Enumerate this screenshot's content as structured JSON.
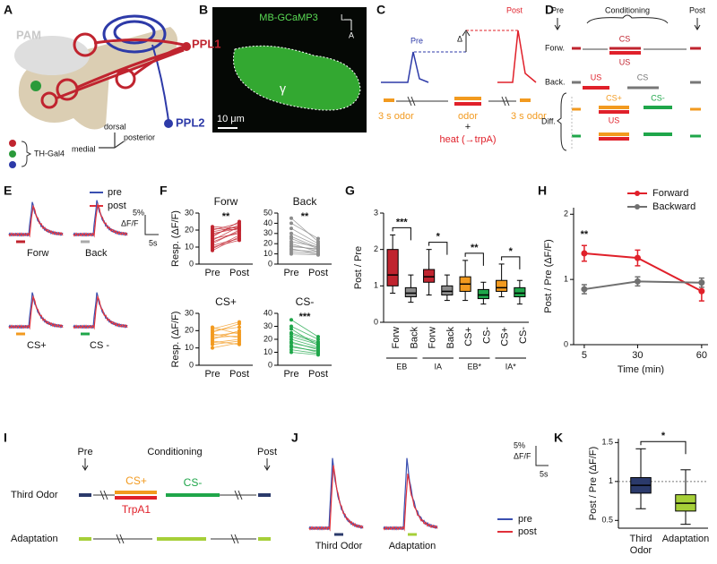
{
  "panels": {
    "A": {
      "label": "A",
      "pam": "PAM",
      "ppl1": "PPL1",
      "ppl2": "PPL2",
      "driver": "TH-Gal4",
      "dorsal": "dorsal",
      "posterior": "posterior",
      "medial": "medial"
    },
    "B": {
      "label": "B",
      "title": "MB-GCaMP3",
      "lateral": "L",
      "anterior": "A",
      "lobe": "γ",
      "scale": "10 μm"
    },
    "C": {
      "label": "C",
      "pre": "Pre",
      "post": "Post",
      "delta": "Δ",
      "odor_pre": "3 s odor",
      "odor": "odor",
      "odor_post": "3 s odor",
      "plus": "+",
      "heat": "heat (→trpA)"
    },
    "D": {
      "label": "D",
      "pre": "Pre",
      "conditioning": "Conditioning",
      "post": "Post",
      "forw": "Forw.",
      "forw_cs": "CS",
      "forw_us": "US",
      "back": "Back.",
      "back_us": "US",
      "back_cs": "CS",
      "diff": "Diff.",
      "diff_csplus": "CS+",
      "diff_us": "US",
      "diff_csminus": "CS-"
    },
    "E": {
      "label": "E",
      "legend": [
        "pre",
        "post"
      ],
      "scale_y": "5%",
      "scale_unit": "ΔF/F",
      "scale_x": "5s",
      "traces": [
        "Forw",
        "Back",
        "CS+",
        "CS -"
      ]
    },
    "F": {
      "label": "F"
    },
    "G": {
      "label": "G"
    },
    "H": {
      "label": "H"
    },
    "I": {
      "label": "I",
      "pre": "Pre",
      "conditioning": "Conditioning",
      "post": "Post",
      "third_odor": "Third Odor",
      "csplus": "CS+",
      "csminus": "CS-",
      "trpa1": "TrpA1",
      "adaptation": "Adaptation"
    },
    "J": {
      "label": "J",
      "legend": [
        "pre",
        "post"
      ],
      "scale_y": "5%",
      "scale_unit": "ΔF/F",
      "scale_x": "5s",
      "traces": [
        "Third Odor",
        "Adaptation"
      ]
    },
    "K": {
      "label": "K"
    }
  },
  "chart_data": [
    {
      "type": "paired",
      "title": "Forw",
      "ylabel": "Resp. (ΔF/F)",
      "categories": [
        "Pre",
        "Post"
      ],
      "ylim": [
        0,
        30
      ],
      "yticks": [
        0,
        10,
        20,
        30
      ],
      "color": "#c0242f",
      "significance": "**",
      "series": [
        {
          "values": [
            9,
            17
          ]
        },
        {
          "values": [
            12,
            20
          ]
        },
        {
          "values": [
            14,
            22
          ]
        },
        {
          "values": [
            15,
            18
          ]
        },
        {
          "values": [
            17,
            23
          ]
        },
        {
          "values": [
            18,
            21
          ]
        },
        {
          "values": [
            20,
            24
          ]
        },
        {
          "values": [
            22,
            21
          ]
        },
        {
          "values": [
            11,
            15
          ]
        },
        {
          "values": [
            13,
            19
          ]
        },
        {
          "values": [
            16,
            25
          ]
        },
        {
          "values": [
            19,
            22
          ]
        },
        {
          "values": [
            21,
            20
          ]
        },
        {
          "values": [
            10,
            14
          ]
        },
        {
          "values": [
            8,
            16
          ]
        }
      ]
    },
    {
      "type": "paired",
      "title": "Back",
      "categories": [
        "Pre",
        "Post"
      ],
      "ylim": [
        0,
        50
      ],
      "yticks": [
        0,
        10,
        20,
        30,
        40,
        50
      ],
      "color": "#8c8c8c",
      "significance": "**",
      "series": [
        {
          "values": [
            15,
            10
          ]
        },
        {
          "values": [
            20,
            12
          ]
        },
        {
          "values": [
            25,
            15
          ]
        },
        {
          "values": [
            30,
            18
          ]
        },
        {
          "values": [
            18,
            14
          ]
        },
        {
          "values": [
            12,
            10
          ]
        },
        {
          "values": [
            35,
            20
          ]
        },
        {
          "values": [
            22,
            17
          ]
        },
        {
          "values": [
            40,
            25
          ]
        },
        {
          "values": [
            10,
            9
          ]
        },
        {
          "values": [
            17,
            15
          ]
        },
        {
          "values": [
            27,
            16
          ]
        },
        {
          "values": [
            14,
            12
          ]
        },
        {
          "values": [
            45,
            22
          ]
        }
      ]
    },
    {
      "type": "paired",
      "title": "CS+",
      "ylabel": "Resp. (ΔF/F)",
      "categories": [
        "Pre",
        "Post"
      ],
      "ylim": [
        0,
        30
      ],
      "yticks": [
        0,
        10,
        20,
        30
      ],
      "color": "#f29a1f",
      "series": [
        {
          "values": [
            15,
            20
          ]
        },
        {
          "values": [
            18,
            16
          ]
        },
        {
          "values": [
            12,
            14
          ]
        },
        {
          "values": [
            20,
            22
          ]
        },
        {
          "values": [
            22,
            18
          ]
        },
        {
          "values": [
            17,
            19
          ]
        },
        {
          "values": [
            10,
            13
          ]
        },
        {
          "values": [
            14,
            12
          ]
        },
        {
          "values": [
            19,
            24
          ]
        },
        {
          "values": [
            16,
            17
          ]
        },
        {
          "values": [
            21,
            25
          ]
        },
        {
          "values": [
            13,
            15
          ]
        }
      ]
    },
    {
      "type": "paired",
      "title": "CS-",
      "categories": [
        "Pre",
        "Post"
      ],
      "ylim": [
        0,
        40
      ],
      "yticks": [
        0,
        10,
        20,
        30,
        40
      ],
      "color": "#1fa64a",
      "significance": "***",
      "series": [
        {
          "values": [
            15,
            10
          ]
        },
        {
          "values": [
            20,
            14
          ]
        },
        {
          "values": [
            25,
            18
          ]
        },
        {
          "values": [
            30,
            20
          ]
        },
        {
          "values": [
            18,
            12
          ]
        },
        {
          "values": [
            12,
            9
          ]
        },
        {
          "values": [
            35,
            22
          ]
        },
        {
          "values": [
            22,
            16
          ]
        },
        {
          "values": [
            28,
            15
          ]
        },
        {
          "values": [
            10,
            8
          ]
        },
        {
          "values": [
            17,
            13
          ]
        },
        {
          "values": [
            24,
            17
          ]
        },
        {
          "values": [
            14,
            11
          ]
        }
      ]
    },
    {
      "type": "box",
      "ylabel": "Post / Pre",
      "ylim": [
        0,
        3
      ],
      "yticks": [
        0,
        1,
        2,
        3
      ],
      "xtick_rotation": 90,
      "categories": [
        "Forw",
        "Back",
        "Forw",
        "Back",
        "CS+",
        "CS-",
        "CS+",
        "CS-"
      ],
      "colors": [
        "#c0242f",
        "#8c8c8c",
        "#c0242f",
        "#8c8c8c",
        "#f29a1f",
        "#1fa64a",
        "#f29a1f",
        "#1fa64a"
      ],
      "groups": [
        "EB",
        "IA",
        "EB*",
        "IA*"
      ],
      "significance": [
        "***",
        "*",
        "**",
        "*"
      ],
      "boxes": [
        {
          "min": 0.8,
          "q1": 1.0,
          "median": 1.3,
          "q3": 2.0,
          "max": 2.4
        },
        {
          "min": 0.55,
          "q1": 0.7,
          "median": 0.8,
          "q3": 0.95,
          "max": 1.3
        },
        {
          "min": 0.75,
          "q1": 1.1,
          "median": 1.25,
          "q3": 1.45,
          "max": 2.0
        },
        {
          "min": 0.6,
          "q1": 0.75,
          "median": 0.85,
          "q3": 1.0,
          "max": 1.3
        },
        {
          "min": 0.6,
          "q1": 0.85,
          "median": 1.05,
          "q3": 1.25,
          "max": 1.7
        },
        {
          "min": 0.5,
          "q1": 0.65,
          "median": 0.75,
          "q3": 0.9,
          "max": 1.1
        },
        {
          "min": 0.7,
          "q1": 0.85,
          "median": 0.95,
          "q3": 1.15,
          "max": 1.6
        },
        {
          "min": 0.5,
          "q1": 0.7,
          "median": 0.8,
          "q3": 0.95,
          "max": 1.15
        }
      ]
    },
    {
      "type": "line",
      "xlabel": "Time (min)",
      "ylabel": "Post / Pre (ΔF/F)",
      "x": [
        5,
        30,
        60
      ],
      "xlim": [
        0,
        63
      ],
      "xticks": [
        5,
        30,
        60
      ],
      "ylim": [
        0,
        2.1
      ],
      "yticks": [
        0,
        1,
        2
      ],
      "legend": "top-right",
      "annotation": "**",
      "series": [
        {
          "name": "Forward",
          "color": "#e0202a",
          "values": [
            1.4,
            1.33,
            0.82
          ],
          "errors": [
            0.12,
            0.12,
            0.15
          ]
        },
        {
          "name": "Backward",
          "color": "#707070",
          "values": [
            0.85,
            0.97,
            0.95
          ],
          "errors": [
            0.07,
            0.07,
            0.07
          ]
        }
      ]
    },
    {
      "type": "box",
      "ylabel": "Post / Pre (ΔF/F)",
      "ylim": [
        0.4,
        1.55
      ],
      "yticks": [
        0.5,
        1,
        1.5
      ],
      "xtick_rotation": 0,
      "refline": 1,
      "categories": [
        "Third Odor",
        "Adaptation"
      ],
      "colors": [
        "#2b3a6b",
        "#a6cf38"
      ],
      "significance": [
        "*"
      ],
      "boxes": [
        {
          "min": 0.65,
          "q1": 0.85,
          "median": 0.95,
          "q3": 1.05,
          "max": 1.42
        },
        {
          "min": 0.45,
          "q1": 0.62,
          "median": 0.72,
          "q3": 0.83,
          "max": 1.15
        }
      ]
    }
  ]
}
